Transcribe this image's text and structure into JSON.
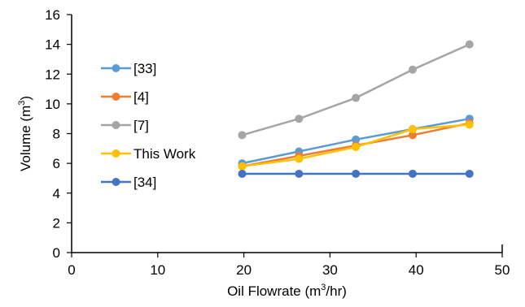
{
  "chart_data": {
    "type": "line",
    "xlabel": "Oil Flowrate (m",
    "xlabel_sup": "3",
    "xlabel_tail": "/hr)",
    "ylabel": "Volume (m",
    "ylabel_sup": "3",
    "ylabel_tail": ")",
    "xlim": [
      0,
      50
    ],
    "ylim": [
      0,
      16
    ],
    "xticks": [
      0,
      10,
      20,
      30,
      40,
      50
    ],
    "yticks": [
      0,
      2,
      4,
      6,
      8,
      10,
      12,
      14,
      16
    ],
    "grid": false,
    "legend_position": "left",
    "x": [
      19.8,
      26.4,
      33.0,
      39.6,
      46.2
    ],
    "series": [
      {
        "name": "[33]",
        "color": "#5b9bd5",
        "values": [
          6.0,
          6.8,
          7.6,
          8.3,
          9.0
        ]
      },
      {
        "name": "[4]",
        "color": "#ed7d31",
        "values": [
          5.8,
          6.5,
          7.2,
          7.9,
          8.7
        ]
      },
      {
        "name": "[7]",
        "color": "#a5a5a5",
        "values": [
          7.9,
          9.0,
          10.4,
          12.3,
          14.0
        ]
      },
      {
        "name": "This Work",
        "color": "#ffc000",
        "values": [
          5.8,
          6.3,
          7.1,
          8.3,
          8.6
        ]
      },
      {
        "name": "[34]",
        "color": "#4472c4",
        "values": [
          5.3,
          5.3,
          5.3,
          5.3,
          5.3
        ]
      }
    ]
  }
}
